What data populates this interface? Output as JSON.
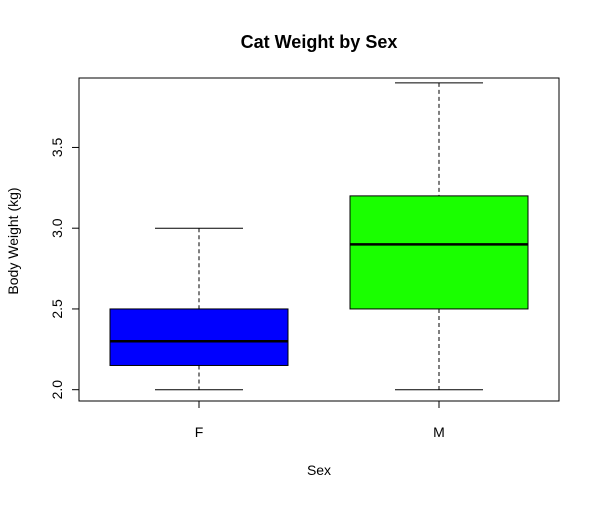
{
  "chart_data": {
    "type": "box",
    "title": "Cat Weight by Sex",
    "xlabel": "Sex",
    "ylabel": "Body Weight (kg)",
    "categories": [
      "F",
      "M"
    ],
    "boxes": [
      {
        "category": "F",
        "min": 2.0,
        "q1": 2.15,
        "median": 2.3,
        "q3": 2.5,
        "max": 3.0,
        "color": "#0000ff"
      },
      {
        "category": "M",
        "min": 2.0,
        "q1": 2.5,
        "median": 2.9,
        "q3": 3.2,
        "max": 3.9,
        "color": "#1aff00"
      }
    ],
    "yticks": [
      2.0,
      2.5,
      3.0,
      3.5
    ],
    "ytick_labels": [
      "2.0",
      "2.5",
      "3.0",
      "3.5"
    ],
    "ylim": [
      1.93,
      3.93
    ],
    "grid": false,
    "legend": "none"
  }
}
